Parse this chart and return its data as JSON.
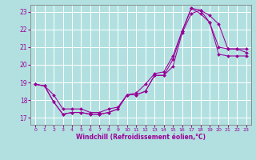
{
  "xlabel": "Windchill (Refroidissement éolien,°C)",
  "bg_color": "#b2e0e0",
  "grid_color": "#ffffff",
  "line_color": "#990099",
  "xlim": [
    -0.5,
    23.5
  ],
  "ylim": [
    16.6,
    23.4
  ],
  "xticks": [
    0,
    1,
    2,
    3,
    4,
    5,
    6,
    7,
    8,
    9,
    10,
    11,
    12,
    13,
    14,
    15,
    16,
    17,
    18,
    19,
    20,
    21,
    22,
    23
  ],
  "yticks": [
    17,
    18,
    19,
    20,
    21,
    22,
    23
  ],
  "line1_x": [
    0,
    1,
    2,
    3,
    4,
    5,
    6,
    7,
    8,
    9,
    10,
    11,
    12,
    13,
    14,
    15,
    16,
    17,
    18,
    19,
    20,
    21,
    22,
    23
  ],
  "line1_y": [
    18.9,
    18.8,
    17.9,
    17.2,
    17.3,
    17.3,
    17.2,
    17.2,
    17.3,
    17.5,
    18.3,
    18.3,
    18.5,
    19.4,
    19.4,
    19.9,
    21.8,
    22.9,
    23.1,
    22.4,
    20.6,
    20.5,
    20.5,
    20.5
  ],
  "line2_x": [
    0,
    1,
    2,
    3,
    4,
    5,
    6,
    7,
    8,
    9,
    10,
    11,
    12,
    13,
    14,
    15,
    16,
    17,
    18,
    19,
    20,
    21,
    22,
    23
  ],
  "line2_y": [
    18.9,
    18.8,
    18.3,
    17.5,
    17.5,
    17.5,
    17.3,
    17.3,
    17.5,
    17.6,
    18.3,
    18.4,
    18.9,
    19.5,
    19.6,
    20.5,
    21.9,
    23.2,
    22.9,
    22.4,
    21.0,
    20.9,
    20.9,
    20.9
  ],
  "line3_x": [
    0,
    1,
    2,
    3,
    4,
    5,
    6,
    7,
    8,
    9,
    10,
    11,
    12,
    13,
    14,
    15,
    16,
    17,
    18,
    19,
    20,
    21,
    22,
    23
  ],
  "line3_y": [
    18.9,
    18.8,
    17.9,
    17.2,
    17.3,
    17.3,
    17.2,
    17.2,
    17.3,
    17.5,
    18.3,
    18.3,
    18.5,
    19.4,
    19.4,
    20.3,
    21.9,
    23.2,
    23.1,
    22.8,
    22.3,
    20.9,
    20.9,
    20.7
  ]
}
